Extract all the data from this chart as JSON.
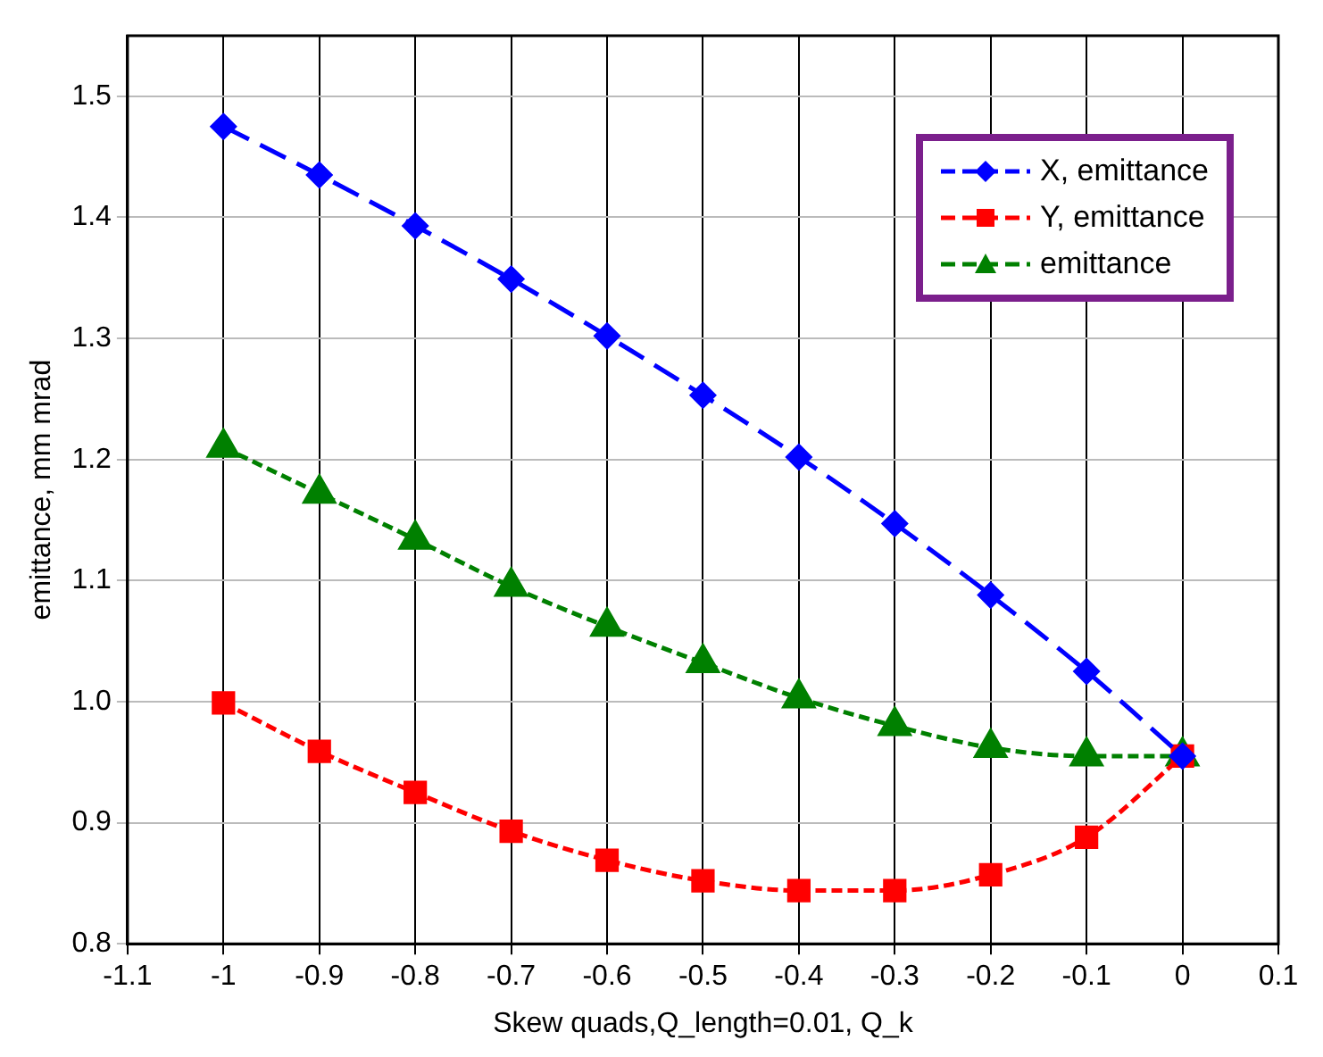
{
  "chart_data": {
    "type": "line",
    "xlabel": "Skew quads,Q_length=0.01, Q_k",
    "ylabel": "emittance, mm mrad",
    "x": [
      -1,
      -0.9,
      -0.8,
      -0.7,
      -0.6,
      -0.5,
      -0.4,
      -0.3,
      -0.2,
      -0.1,
      0
    ],
    "series": [
      {
        "name": "X, emittance",
        "color": "#0000ff",
        "marker": "diamond",
        "line_style": "dashed",
        "values": [
          1.475,
          1.435,
          1.393,
          1.349,
          1.302,
          1.253,
          1.202,
          1.147,
          1.088,
          1.025,
          0.955
        ]
      },
      {
        "name": "Y, emittance",
        "color": "#ff0000",
        "marker": "square",
        "line_style": "dashed",
        "values": [
          0.999,
          0.959,
          0.925,
          0.893,
          0.869,
          0.852,
          0.844,
          0.844,
          0.857,
          0.888,
          0.955
        ]
      },
      {
        "name": "emittance",
        "color": "#008000",
        "marker": "triangle",
        "line_style": "dashed",
        "values": [
          1.21,
          1.172,
          1.134,
          1.095,
          1.062,
          1.032,
          1.003,
          0.98,
          0.962,
          0.955,
          0.955
        ]
      }
    ],
    "xlim": [
      -1.1,
      0.1
    ],
    "xticks": [
      -1.1,
      -1,
      -0.9,
      -0.8,
      -0.7,
      -0.6,
      -0.5,
      -0.4,
      -0.3,
      -0.2,
      -0.1,
      0,
      0.1
    ],
    "ylim": [
      0.8,
      1.55
    ],
    "yticks": [
      0.8,
      0.9,
      {
        "value": 1,
        "label": "1.0"
      },
      1.1,
      1.2,
      1.3,
      1.4,
      1.5
    ],
    "grid": true,
    "legend": "top right"
  }
}
